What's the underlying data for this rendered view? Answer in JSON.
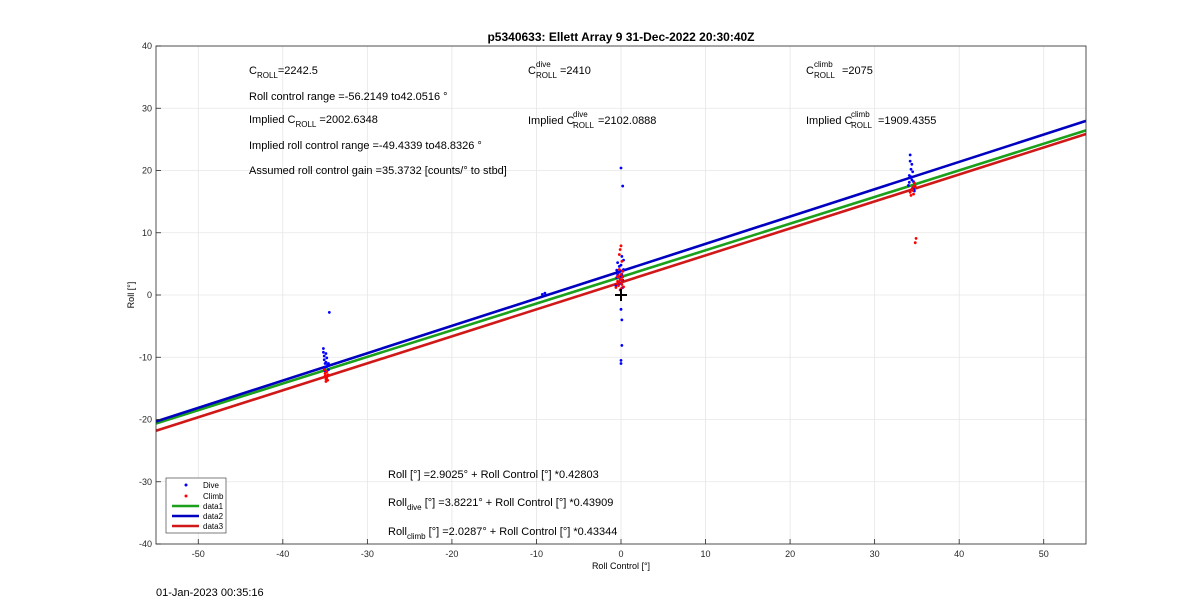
{
  "footer_timestamp": "01-Jan-2023 00:35:16",
  "chart_data": {
    "type": "scatter",
    "title": "p5340633: Ellett Array 9 31-Dec-2022 20:30:40Z",
    "xlabel": "Roll Control [°]",
    "ylabel": "Roll [°]",
    "xlim": [
      -55,
      55
    ],
    "ylim": [
      -40,
      40
    ],
    "x_ticks": [
      -50,
      -40,
      -30,
      -20,
      -10,
      0,
      10,
      20,
      30,
      40,
      50
    ],
    "y_ticks": [
      -40,
      -30,
      -20,
      -10,
      0,
      10,
      20,
      30,
      40
    ],
    "grid": true,
    "legend_position": "bottom-left",
    "legend": [
      "Dive",
      "Climb",
      "data1",
      "data2",
      "data3"
    ],
    "annotations_top": {
      "c_roll": {
        "base": "C",
        "sub": "ROLL",
        "value": "=2242.5"
      },
      "c_roll_dive": {
        "base": "C",
        "sup": "dive",
        "sub": "ROLL",
        "value": "=2410"
      },
      "c_roll_climb": {
        "base": "C",
        "sup": "climb",
        "sub": "ROLL",
        "value": "=2075"
      },
      "roll_control_range": "Roll control range =-56.2149 to42.0516 °",
      "implied_c_roll": {
        "prefix": "Implied C",
        "sub": "ROLL",
        "value": " =2002.6348"
      },
      "implied_c_roll_dive": {
        "prefix": "Implied C",
        "sup": "dive",
        "sub": "ROLL",
        "value": "=2102.0888"
      },
      "implied_c_roll_climb": {
        "prefix": "Implied C",
        "sup": "climb",
        "sub": "ROLL",
        "value": "=1909.4355"
      },
      "implied_roll_range": "Implied roll control range =-49.4339 to48.8326 °",
      "assumed_gain": "Assumed roll control gain =35.3732 [counts/° to stbd]"
    },
    "annotations_fit": {
      "all": {
        "lead": "Roll [°] =2.9025° + Roll Control [°] *0.42803"
      },
      "dive": {
        "lead": "Roll",
        "sub": "dive",
        "tail": " [°] =3.8221° + Roll Control [°] *0.43909"
      },
      "climb": {
        "lead": "Roll",
        "sub": "climb",
        "tail": " [°] =2.0287° + Roll Control [°] *0.43344"
      }
    },
    "series": [
      {
        "name": "Dive",
        "kind": "points",
        "color": "#0000ff",
        "x": [
          -35.2,
          -35.2,
          -35.1,
          -35.1,
          -35.0,
          -35.0,
          -35.0,
          -34.9,
          -34.9,
          -34.8,
          -34.8,
          -34.7,
          -34.6,
          -34.6,
          -34.5,
          -9.3,
          -9.0,
          -0.6,
          -0.5,
          -0.5,
          -0.4,
          -0.4,
          -0.3,
          -0.3,
          -0.2,
          -0.2,
          -0.1,
          -0.1,
          0.0,
          0.0,
          0.1,
          0.1,
          0.2,
          0.2,
          0.3,
          0.3,
          0.0,
          0.1,
          0.1,
          0.0,
          0.0,
          0.2,
          0.0,
          34.0,
          34.1,
          34.1,
          34.2,
          34.2,
          34.3,
          34.3,
          34.4,
          34.4,
          34.5,
          34.5,
          34.6,
          34.6,
          34.7
        ],
        "y": [
          -8.6,
          -9.2,
          -9.8,
          -10.4,
          -11.0,
          -11.6,
          -12.2,
          -9.4,
          -10.8,
          -11.5,
          -10.1,
          -11.2,
          -11.0,
          -12.0,
          -2.8,
          0.1,
          0.3,
          1.5,
          2.8,
          4.0,
          3.2,
          5.2,
          2.1,
          3.6,
          4.6,
          1.8,
          2.5,
          3.9,
          2.9,
          4.8,
          6.2,
          3.3,
          1.2,
          2.4,
          5.6,
          4.1,
          -2.3,
          -4.0,
          -8.1,
          -10.5,
          -11.0,
          17.5,
          20.4,
          17.6,
          18.1,
          19.2,
          22.5,
          21.5,
          20.2,
          19.0,
          18.5,
          21.0,
          17.2,
          19.8,
          18.2,
          17.0,
          16.7
        ]
      },
      {
        "name": "Climb",
        "kind": "points",
        "color": "#ff0000",
        "x": [
          -35.1,
          -35.0,
          -35.0,
          -34.9,
          -34.9,
          -34.8,
          -34.8,
          -34.7,
          -34.7,
          -0.6,
          -0.5,
          -0.4,
          -0.4,
          -0.3,
          -0.3,
          -0.2,
          -0.2,
          -0.1,
          -0.1,
          0.0,
          0.0,
          0.1,
          0.1,
          0.2,
          0.2,
          0.3,
          -0.2,
          0.0,
          -0.1,
          0.1,
          34.2,
          34.3,
          34.4,
          34.5,
          34.6,
          34.6,
          34.7,
          34.8,
          34.8,
          34.9
        ],
        "y": [
          -12.0,
          -12.6,
          -13.0,
          -13.5,
          -13.9,
          -12.3,
          -13.3,
          -12.8,
          -13.7,
          1.2,
          1.8,
          2.2,
          2.9,
          1.5,
          3.1,
          2.0,
          4.1,
          0.8,
          2.6,
          3.3,
          1.0,
          2.4,
          1.7,
          3.8,
          2.9,
          1.3,
          6.5,
          7.9,
          7.3,
          5.4,
          16.5,
          16.0,
          17.0,
          16.8,
          17.4,
          16.2,
          18.0,
          17.5,
          8.4,
          9.1
        ]
      },
      {
        "name": "data1",
        "kind": "line",
        "color": "#1aa01a",
        "x": [
          -55,
          55
        ],
        "y": [
          -20.6393,
          26.4441
        ]
      },
      {
        "name": "data2",
        "kind": "line",
        "color": "#0000c0",
        "x": [
          -55,
          55
        ],
        "y": [
          -20.3279,
          27.9721
        ]
      },
      {
        "name": "data3",
        "kind": "line",
        "color": "#d01818",
        "x": [
          -55,
          55
        ],
        "y": [
          -21.8105,
          25.8679
        ]
      }
    ]
  }
}
